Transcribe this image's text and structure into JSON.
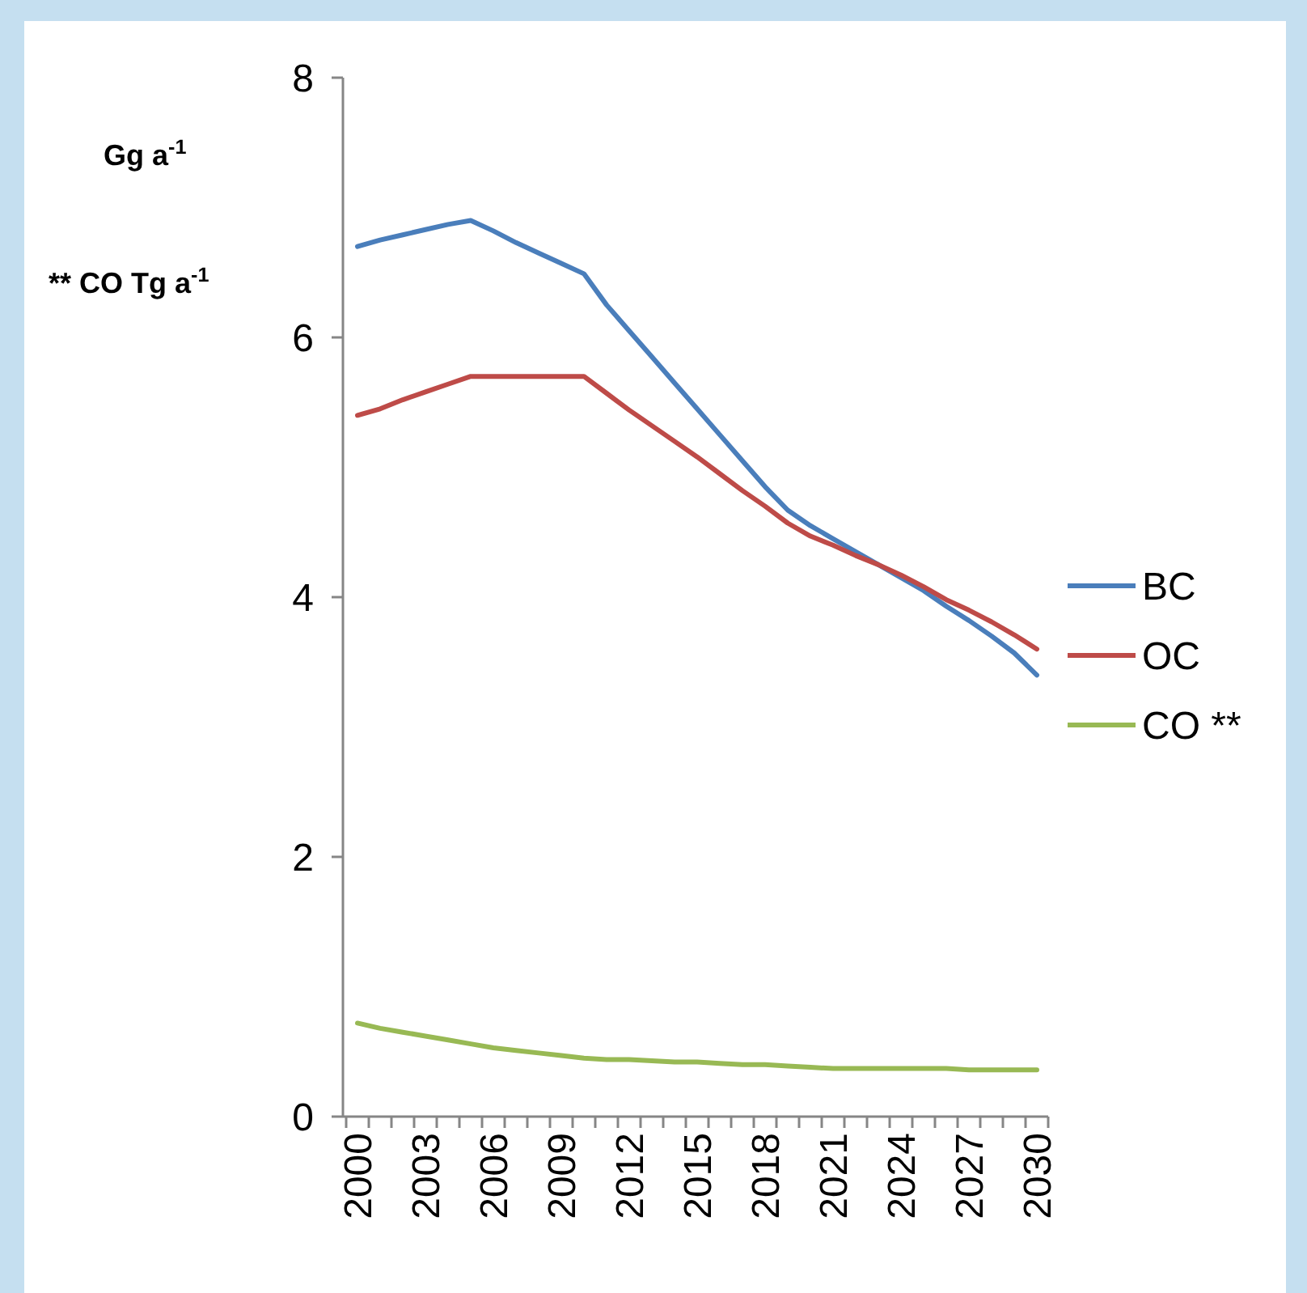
{
  "chart_data": {
    "type": "line",
    "ylabel": "Gg a$^{-1}$",
    "annotations": [
      "** CO Tg a$^{-1}$"
    ],
    "categories": [
      "2000",
      null,
      null,
      "2003",
      null,
      null,
      "2006",
      null,
      null,
      "2009",
      null,
      null,
      "2012",
      null,
      null,
      "2015",
      null,
      null,
      "2018",
      null,
      null,
      "2021",
      null,
      null,
      "2024",
      null,
      null,
      "2027",
      null,
      null,
      "2030"
    ],
    "ylim": [
      0,
      8
    ],
    "yticks": [
      0,
      2,
      4,
      6,
      8
    ],
    "grid": false,
    "legend": "right",
    "marker": "none",
    "line_style": "solid",
    "series": [
      {
        "name": "BC",
        "color": "#4a7ebb",
        "values": [
          6.7,
          6.75,
          6.79,
          6.83,
          6.87,
          6.9,
          6.82,
          6.73,
          6.65,
          6.57,
          6.49,
          6.25,
          6.05,
          5.85,
          5.65,
          5.45,
          5.25,
          5.05,
          4.85,
          4.67,
          4.55,
          4.45,
          4.35,
          4.25,
          4.15,
          4.05,
          3.93,
          3.82,
          3.7,
          3.57,
          3.4
        ]
      },
      {
        "name": "OC",
        "color": "#be4b48",
        "values": [
          5.4,
          5.45,
          5.52,
          5.58,
          5.64,
          5.7,
          5.7,
          5.7,
          5.7,
          5.7,
          5.7,
          5.57,
          5.44,
          5.32,
          5.2,
          5.08,
          4.95,
          4.82,
          4.7,
          4.57,
          4.47,
          4.4,
          4.32,
          4.25,
          4.17,
          4.08,
          3.98,
          3.9,
          3.81,
          3.71,
          3.6
        ]
      },
      {
        "name": "CO **",
        "color": "#98b954",
        "values": [
          0.72,
          0.68,
          0.65,
          0.62,
          0.59,
          0.56,
          0.53,
          0.51,
          0.49,
          0.47,
          0.45,
          0.44,
          0.44,
          0.43,
          0.42,
          0.42,
          0.41,
          0.4,
          0.4,
          0.39,
          0.38,
          0.37,
          0.37,
          0.37,
          0.37,
          0.37,
          0.37,
          0.36,
          0.36,
          0.36,
          0.36
        ]
      }
    ]
  }
}
